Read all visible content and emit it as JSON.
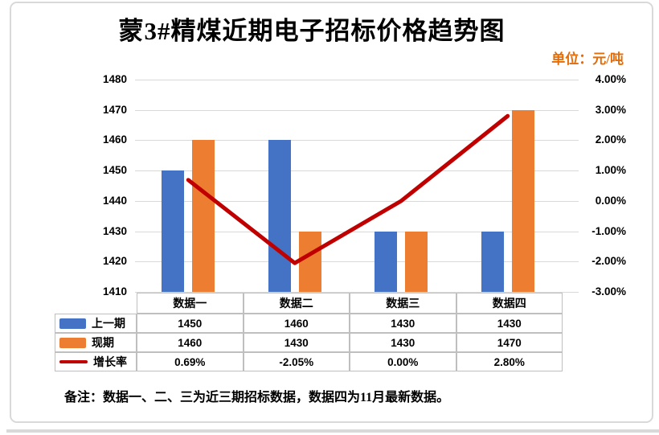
{
  "chart": {
    "title": "蒙3#精煤近期电子招标价格趋势图",
    "unit_label": "单位：元/吨",
    "unit_color": "#e36c09",
    "note": "备注：数据一、二、三为近三期招标数据，数据四为11月最新数据。"
  },
  "chart_data": {
    "type": "combo-bar-line",
    "title": "蒙3#精煤近期电子招标价格趋势图",
    "categories": [
      "数据一",
      "数据二",
      "数据三",
      "数据四"
    ],
    "series": [
      {
        "name": "上一期",
        "type": "bar",
        "axis": "left",
        "color": "#4472c4",
        "values": [
          1450,
          1460,
          1430,
          1430
        ],
        "labels": [
          "1450",
          "1460",
          "1430",
          "1430"
        ]
      },
      {
        "name": "现期",
        "type": "bar",
        "axis": "left",
        "color": "#ed7d31",
        "values": [
          1460,
          1430,
          1430,
          1470
        ],
        "labels": [
          "1460",
          "1430",
          "1430",
          "1470"
        ]
      },
      {
        "name": "增长率",
        "type": "line",
        "axis": "right",
        "color": "#c00000",
        "values": [
          0.69,
          -2.05,
          0.0,
          2.8
        ],
        "labels": [
          "0.69%",
          "-2.05%",
          "0.00%",
          "2.80%"
        ]
      }
    ],
    "left_axis": {
      "min": 1410,
      "max": 1480,
      "step": 10,
      "tick_labels": [
        "1480",
        "1470",
        "1460",
        "1450",
        "1440",
        "1430",
        "1420",
        "1410"
      ]
    },
    "right_axis": {
      "min": -3,
      "max": 4,
      "step": 1,
      "tick_labels": [
        "4.00%",
        "3.00%",
        "2.00%",
        "1.00%",
        "0.00%",
        "-1.00%",
        "-2.00%",
        "-3.00%"
      ]
    },
    "grid": true,
    "gridline_color": "#d9d9d9",
    "table_border_color": "#bfbfbf",
    "legend_position": "table-left"
  }
}
